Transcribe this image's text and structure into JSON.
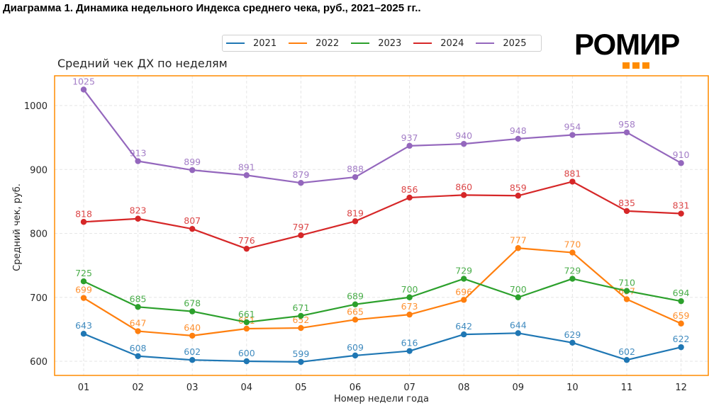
{
  "document_title": "Диаграмма 1. Динамика недельного Индекса среднего чека, руб., 2021–2025 гг..",
  "logo": {
    "text": "РОМИР",
    "accent_color": "#ff8c00",
    "icon": "three-orange-squares"
  },
  "chart_data": {
    "type": "line",
    "title": "Средний чек ДХ по неделям",
    "xlabel": "Номер недели года",
    "ylabel": "Средний чек, руб.",
    "categories": [
      "01",
      "02",
      "03",
      "04",
      "05",
      "06",
      "07",
      "08",
      "09",
      "10",
      "11",
      "12"
    ],
    "ylim": [
      575,
      1045
    ],
    "yticks": [
      600,
      700,
      800,
      900,
      1000
    ],
    "grid": true,
    "legend_placement": "top-center",
    "frame_color": "#ff8c00",
    "series": [
      {
        "name": "2021",
        "color": "#1f77b4",
        "values": [
          643,
          608,
          602,
          600,
          599,
          609,
          616,
          642,
          644,
          629,
          602,
          622
        ]
      },
      {
        "name": "2022",
        "color": "#ff7f0e",
        "values": [
          699,
          647,
          640,
          651,
          652,
          665,
          673,
          696,
          777,
          770,
          697,
          659
        ]
      },
      {
        "name": "2023",
        "color": "#2ca02c",
        "values": [
          725,
          685,
          678,
          661,
          671,
          689,
          700,
          729,
          700,
          729,
          710,
          694
        ]
      },
      {
        "name": "2024",
        "color": "#d62728",
        "values": [
          818,
          823,
          807,
          776,
          797,
          819,
          856,
          860,
          859,
          881,
          835,
          831
        ]
      },
      {
        "name": "2025",
        "color": "#9467bd",
        "values": [
          1025,
          913,
          899,
          891,
          879,
          888,
          937,
          940,
          948,
          954,
          958,
          910
        ]
      }
    ]
  }
}
